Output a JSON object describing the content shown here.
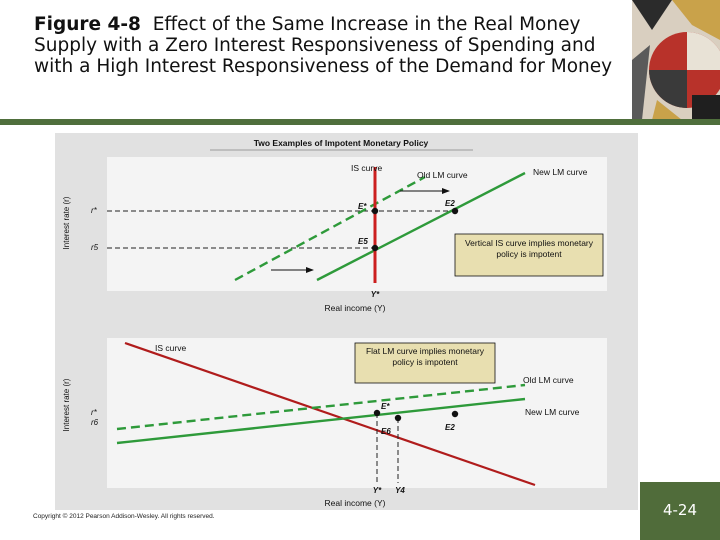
{
  "title": {
    "figure_label": "Figure 4-8",
    "text": "Effect of the Same Increase in the Real Money Supply with a Zero Interest Responsiveness of Spending and with a High Interest Responsiveness of the Demand for Money"
  },
  "figure": {
    "heading": "Two Examples of Impotent Monetary Policy",
    "top_panel": {
      "y_axis_label": "Interest rate (r)",
      "x_axis_label": "Real income (Y)",
      "r_star": "r*",
      "r5": "r5",
      "y_star": "Y*",
      "is_curve": "IS curve",
      "old_lm": "Old LM curve",
      "new_lm": "New LM curve",
      "e_star": "E*",
      "e2": "E2",
      "e5": "E5",
      "note": "Vertical IS curve implies monetary policy is impotent"
    },
    "bottom_panel": {
      "y_axis_label": "Interest rate (r)",
      "x_axis_label": "Real income (Y)",
      "r_star": "r*",
      "r6": "r6",
      "y_star": "Y*",
      "y4": "Y4",
      "is_curve": "IS curve",
      "old_lm": "Old LM curve",
      "new_lm": "New LM curve",
      "e_star": "E*",
      "e2": "E2",
      "e6": "E6",
      "note": "Flat LM curve implies monetary policy is impotent"
    },
    "colors": {
      "is_curve_top": "#cc1f1f",
      "is_curve_bottom": "#b01c1c",
      "lm_curve": "#2e9a3a",
      "note_box": "#e8dfb0",
      "accent_bar": "#4f6f3c"
    }
  },
  "footer": {
    "copyright": "Copyright © 2012 Pearson Addison-Wesley. All rights reserved.",
    "slide_number": "4-24"
  }
}
